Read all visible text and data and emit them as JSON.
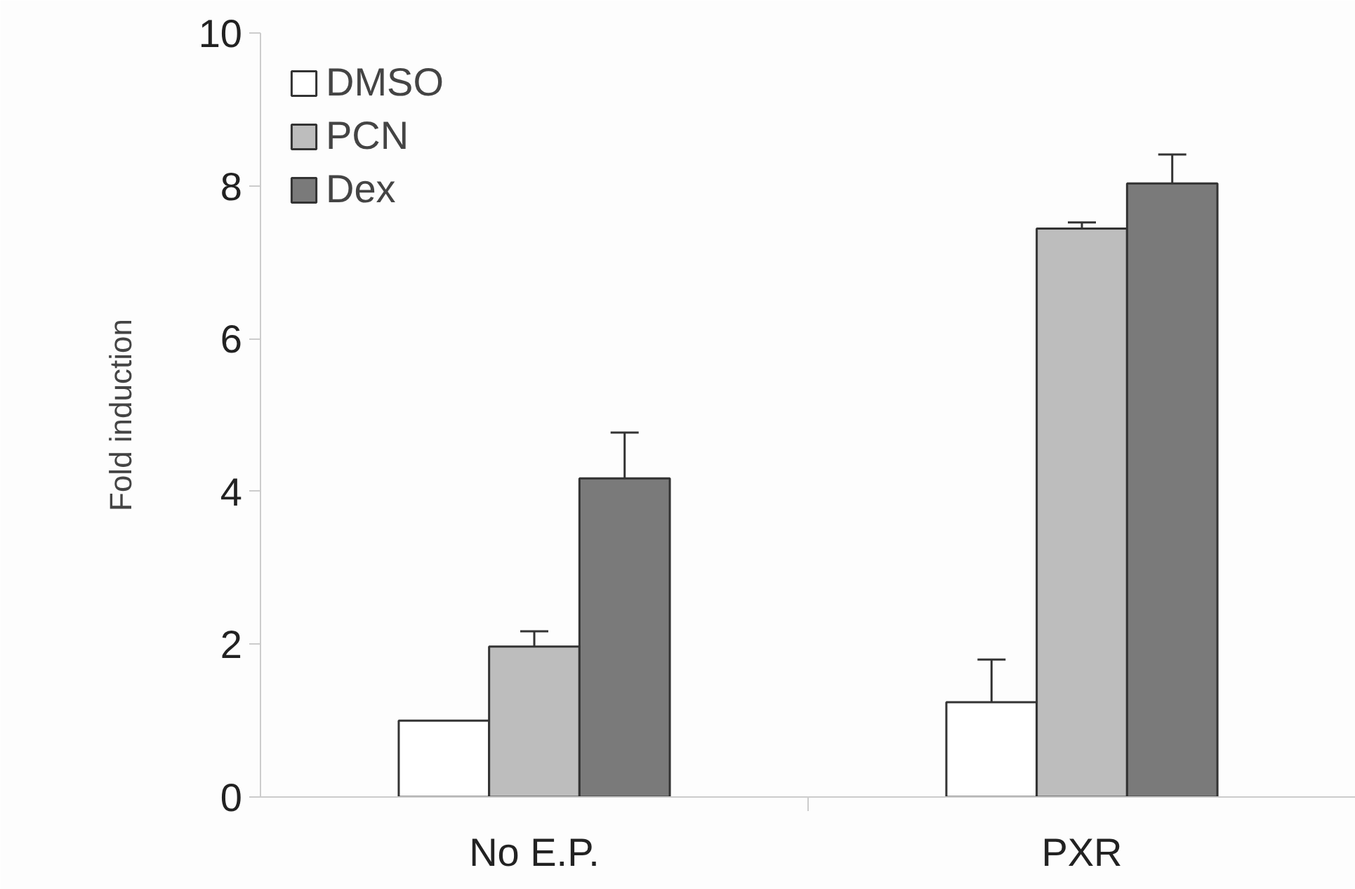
{
  "chart_data": {
    "type": "bar",
    "ylabel": "Fold induction",
    "categories": [
      "No E.P.",
      "PXR"
    ],
    "ylim": [
      0,
      10
    ],
    "yticks": [
      0,
      2,
      4,
      6,
      8,
      10
    ],
    "grid": false,
    "legend": "top left",
    "series": [
      {
        "name": "DMSO",
        "color": "#ffffff",
        "values": [
          1.0,
          1.24
        ],
        "errors": [
          null,
          0.56
        ]
      },
      {
        "name": "PCN",
        "color": "#bdbdbd",
        "values": [
          1.97,
          7.44
        ],
        "errors": [
          0.2,
          0.08
        ]
      },
      {
        "name": "Dex",
        "color": "#7a7a7a",
        "values": [
          4.17,
          8.03
        ],
        "errors": [
          0.6,
          0.38
        ]
      }
    ]
  }
}
